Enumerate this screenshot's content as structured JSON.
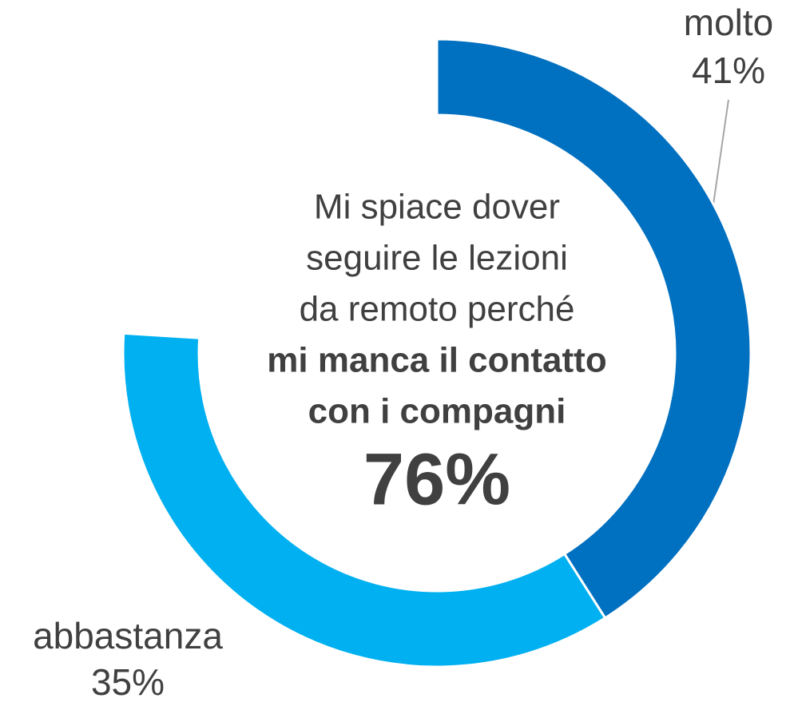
{
  "chart_data": {
    "type": "donut",
    "categories": [
      "molto",
      "abbastanza"
    ],
    "values": [
      41,
      35
    ],
    "value_labels": [
      "41%",
      "35%"
    ],
    "colors": [
      "#0070C0",
      "#00B0F0"
    ],
    "full_circle": 100,
    "center_text": {
      "lines": [
        "Mi spiace dover",
        "seguire le lezioni",
        "da remoto perché"
      ],
      "bold_lines": [
        "mi manca il contatto",
        "con i compagni"
      ],
      "total": "76%"
    }
  }
}
